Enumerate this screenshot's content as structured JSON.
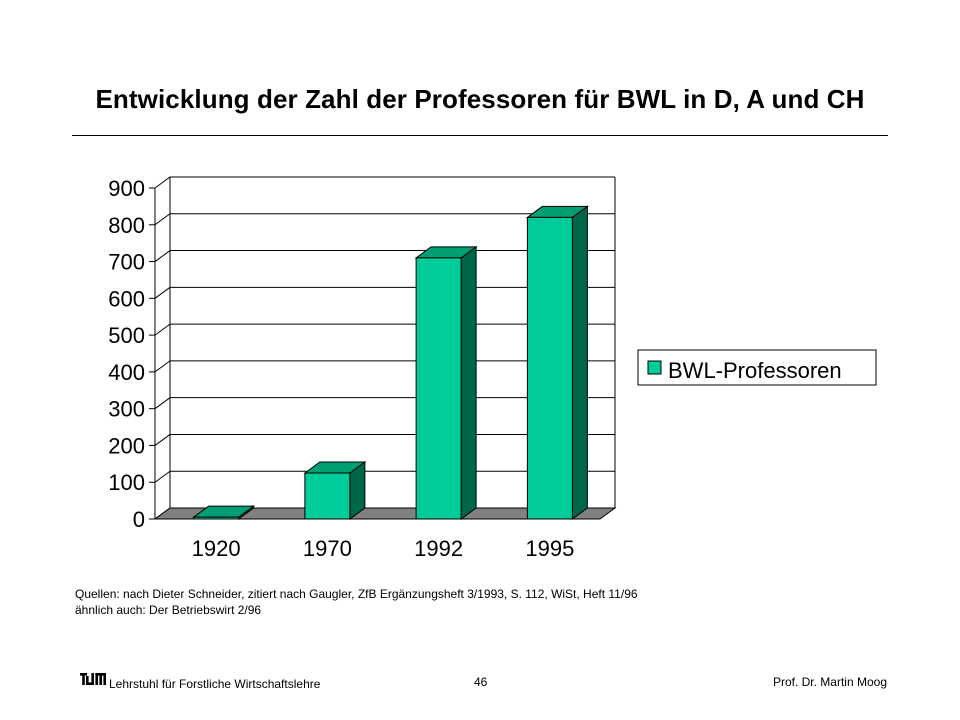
{
  "title": "Entwicklung der Zahl der Professoren für BWL in D, A und CH",
  "chart_data": {
    "type": "bar",
    "categories": [
      "1920",
      "1970",
      "1992",
      "1995"
    ],
    "series": [
      {
        "name": "BWL-Professoren",
        "values": [
          5,
          125,
          710,
          820
        ]
      }
    ],
    "ylim": [
      0,
      900
    ],
    "yticks": [
      "0",
      "100",
      "200",
      "300",
      "400",
      "500",
      "600",
      "700",
      "800",
      "900"
    ],
    "grid": true,
    "legend": "right",
    "colors": {
      "bar_front": "#00cc99",
      "bar_side": "#006648",
      "bar_top": "#009e73",
      "floor": "#808080"
    }
  },
  "source": {
    "line1": "Quellen: nach Dieter Schneider, zitiert nach Gaugler, ZfB Ergänzungsheft 3/1993, S. 112, WiSt, Heft 11/96",
    "line2": "ähnlich auch: Der Betriebswirt 2/96"
  },
  "footer": {
    "logo_text": "TUM",
    "institution": "Lehrstuhl für Forstliche Wirtschaftslehre",
    "page": "46",
    "author": "Prof. Dr. Martin Moog"
  }
}
